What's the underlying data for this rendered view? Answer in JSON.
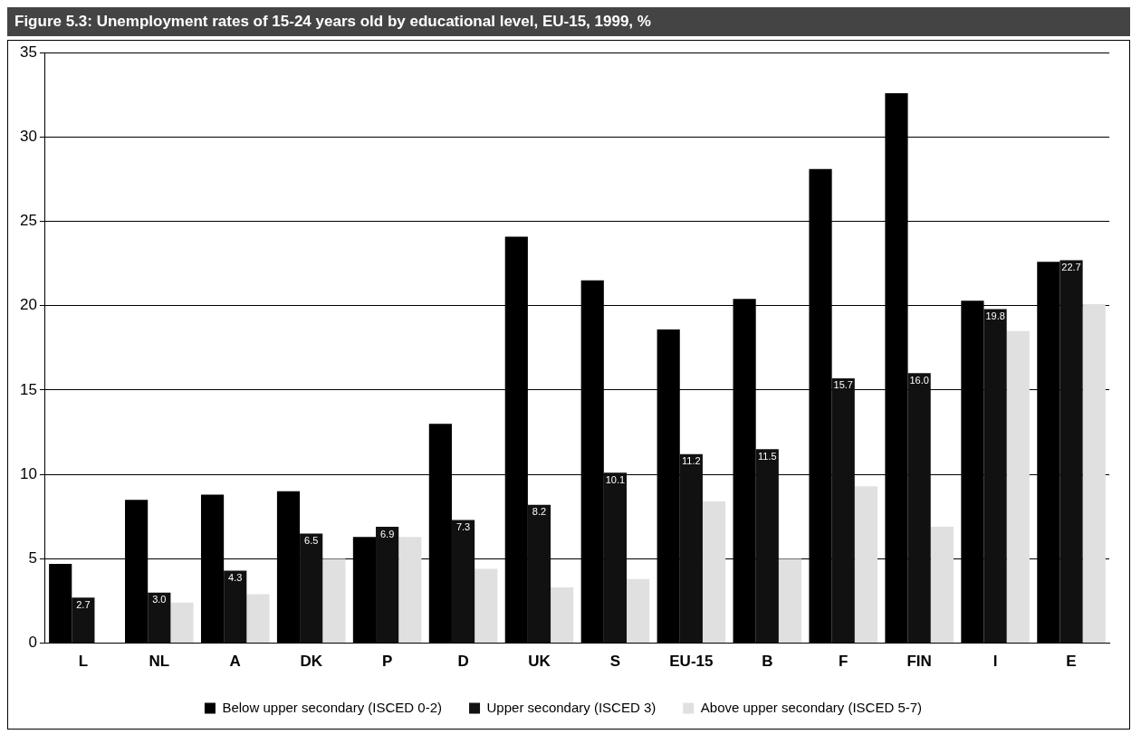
{
  "chart_data": {
    "type": "bar",
    "title": "Figure 5.3: Unemployment rates of 15-24 years old by educational level, EU-15, 1999, %",
    "categories": [
      "L",
      "NL",
      "A",
      "DK",
      "P",
      "D",
      "UK",
      "S",
      "EU-15",
      "B",
      "F",
      "FIN",
      "I",
      "E"
    ],
    "series": [
      {
        "name": "Below upper secondary (ISCED 0-2)",
        "color": "#000000",
        "values": [
          4.7,
          8.5,
          8.8,
          9.0,
          6.3,
          13.0,
          24.1,
          21.5,
          18.6,
          20.4,
          28.1,
          32.6,
          20.3,
          22.6
        ]
      },
      {
        "name": "Upper secondary (ISCED 3)",
        "color": "#111111",
        "values": [
          2.7,
          3.0,
          4.3,
          6.5,
          6.9,
          7.3,
          8.2,
          10.1,
          11.2,
          11.5,
          15.7,
          16.0,
          19.8,
          22.7
        ],
        "value_labels": [
          "2.7",
          "3.0",
          "4.3",
          "6.5",
          "6.9",
          "7.3",
          "8.2",
          "10.1",
          "11.2",
          "11.5",
          "15.7",
          "16.0",
          "19.8",
          "22.7"
        ]
      },
      {
        "name": "Above upper secondary (ISCED 5-7)",
        "color": "#e0e0e0",
        "values": [
          null,
          2.4,
          2.9,
          5.0,
          6.3,
          4.4,
          3.3,
          3.8,
          8.4,
          5.0,
          9.3,
          6.9,
          18.5,
          20.1
        ]
      }
    ],
    "ylim": [
      0,
      35
    ],
    "yticks": [
      0,
      5,
      10,
      15,
      20,
      25,
      30,
      35
    ],
    "grid": "y",
    "legend": "bottom"
  }
}
